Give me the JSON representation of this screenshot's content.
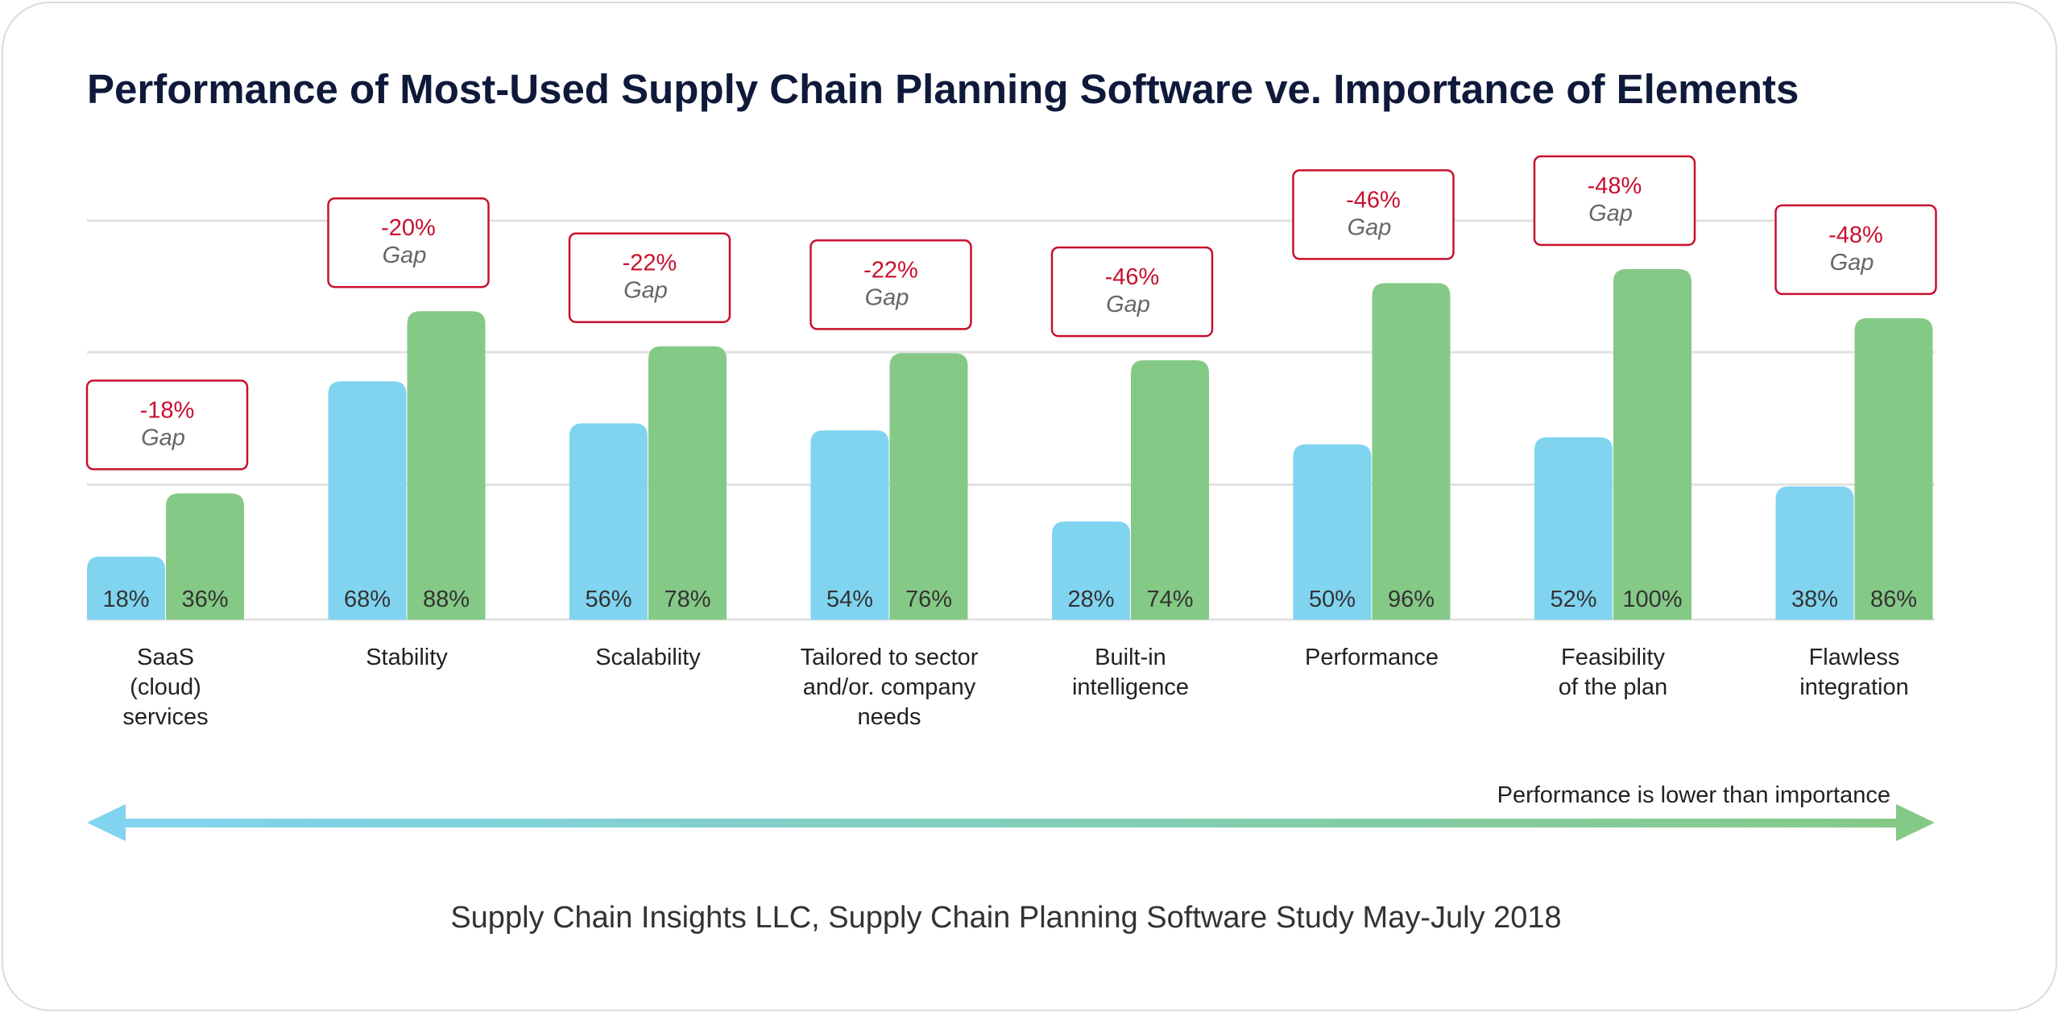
{
  "chart_data": {
    "type": "bar",
    "title": "Performance of Most-Used Supply Chain Planning Software ve. Importance of Elements",
    "categories": [
      [
        "SaaS",
        "(cloud)",
        "services"
      ],
      [
        "Stability"
      ],
      [
        "Scalability"
      ],
      [
        "Tailored to sector",
        "and/or. company",
        "needs"
      ],
      [
        "Built-in",
        "intelligence"
      ],
      [
        "Performance"
      ],
      [
        "Feasibility",
        "of the plan"
      ],
      [
        "Flawless",
        "integration"
      ]
    ],
    "series": [
      {
        "values": [
          18,
          68,
          56,
          54,
          28,
          50,
          52,
          38
        ],
        "labels": [
          "18%",
          "68%",
          "56%",
          "54%",
          "28%",
          "50%",
          "52%",
          "38%"
        ],
        "color": "#80d4f0"
      },
      {
        "values": [
          36,
          88,
          78,
          76,
          74,
          96,
          100,
          86
        ],
        "labels": [
          "36%",
          "88%",
          "78%",
          "76%",
          "74%",
          "96%",
          "100%",
          "86%"
        ],
        "color": "#85c986"
      }
    ],
    "gaps": [
      {
        "value": "-18%",
        "label": "Gap"
      },
      {
        "value": "-20%",
        "label": "Gap"
      },
      {
        "value": "-22%",
        "label": "Gap"
      },
      {
        "value": "-22%",
        "label": "Gap"
      },
      {
        "value": "-46%",
        "label": "Gap"
      },
      {
        "value": "-46%",
        "label": "Gap"
      },
      {
        "value": "-48%",
        "label": "Gap"
      },
      {
        "value": "-48%",
        "label": "Gap"
      }
    ],
    "arrow_label": "Performance is lower than importance",
    "source": "Supply Chain Insights LLC, Supply Chain Planning Software Study May-July 2018",
    "grid": true,
    "legend": "none",
    "colors": {
      "title": "#0f1a3a",
      "gap_value": "#c8102e",
      "gap_label": "#666666",
      "gap_border": "#c8102e",
      "bar_label": "#333333",
      "category": "#222222",
      "grid": "#e2e2e2",
      "arrow_start": "#80d4f0",
      "arrow_end": "#85c986",
      "source": "#333333"
    }
  }
}
